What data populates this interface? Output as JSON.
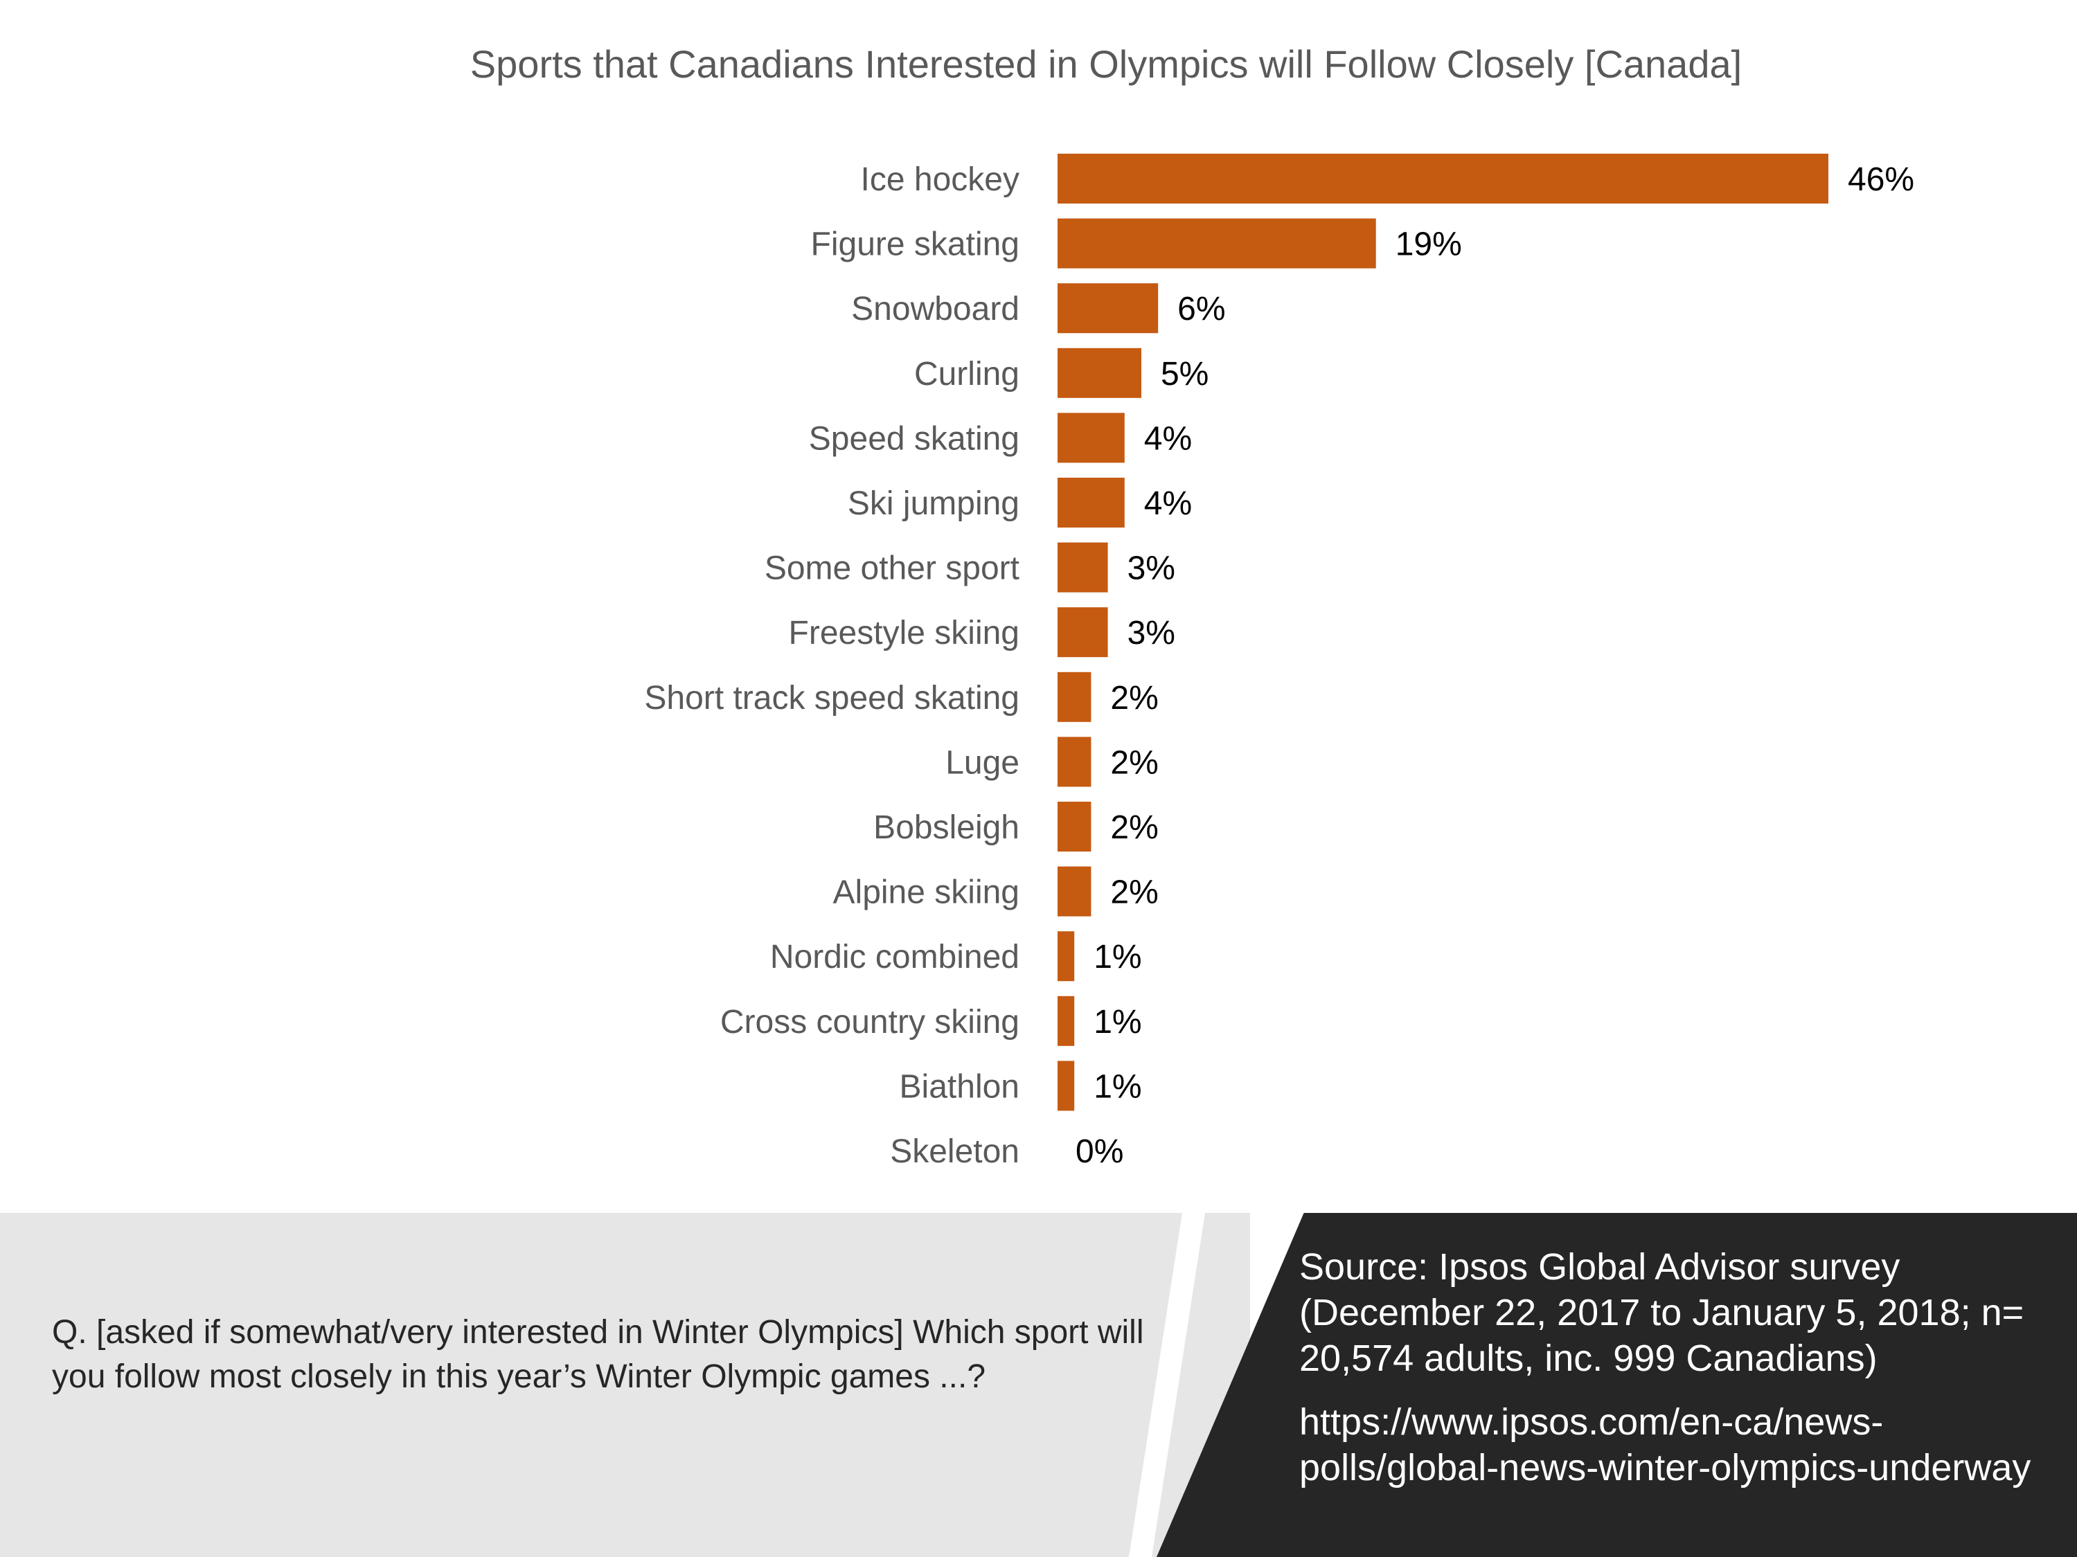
{
  "chart_data": {
    "type": "bar",
    "orientation": "horizontal",
    "title": "Sports that Canadians Interested in Olympics will Follow Closely [Canada]",
    "categories": [
      "Ice hockey",
      "Figure skating",
      "Snowboard",
      "Curling",
      "Speed skating",
      "Ski jumping",
      "Some other sport",
      "Freestyle skiing",
      "Short track speed skating",
      "Luge",
      "Bobsleigh",
      "Alpine skiing",
      "Nordic combined",
      "Cross country skiing",
      "Biathlon",
      "Skeleton"
    ],
    "values": [
      46,
      19,
      6,
      5,
      4,
      4,
      3,
      3,
      2,
      2,
      2,
      2,
      1,
      1,
      1,
      0
    ],
    "value_labels": [
      "46%",
      "19%",
      "6%",
      "5%",
      "4%",
      "4%",
      "3%",
      "3%",
      "2%",
      "2%",
      "2%",
      "2%",
      "1%",
      "1%",
      "1%",
      "0%"
    ],
    "bar_color": "#c55a11",
    "xlim": [
      0,
      46
    ],
    "grid": false,
    "legend": "none"
  },
  "footer": {
    "question": "Q.  [asked if somewhat/very interested in Winter Olympics] Which sport will you follow most closely in this year’s Winter Olympic games ...?",
    "source": "Source: Ipsos Global Advisor survey (December 22, 2017 to January 5, 2018; n= 20,574 adults, inc. 999 Canadians)",
    "url": "https://www.ipsos.com/en-ca/news-polls/global-news-winter-olympics-underway"
  }
}
